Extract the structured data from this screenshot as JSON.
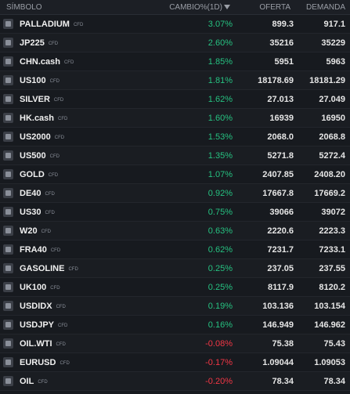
{
  "table": {
    "header": {
      "symbol": "SÍMBOLO",
      "change": "CAMBIO%(1D)",
      "bid": "OFERTA",
      "ask": "DEMANDA"
    },
    "positive_color": "#26c281",
    "negative_color": "#f23645",
    "rows": [
      {
        "symbol": "PALLADIUM",
        "tag": "CFD",
        "change": "3.07%",
        "bid": "899.3",
        "ask": "917.1"
      },
      {
        "symbol": "JP225",
        "tag": "CFD",
        "change": "2.60%",
        "bid": "35216",
        "ask": "35229"
      },
      {
        "symbol": "CHN.cash",
        "tag": "CFD",
        "change": "1.85%",
        "bid": "5951",
        "ask": "5963"
      },
      {
        "symbol": "US100",
        "tag": "CFD",
        "change": "1.81%",
        "bid": "18178.69",
        "ask": "18181.29"
      },
      {
        "symbol": "SILVER",
        "tag": "CFD",
        "change": "1.62%",
        "bid": "27.013",
        "ask": "27.049"
      },
      {
        "symbol": "HK.cash",
        "tag": "CFD",
        "change": "1.60%",
        "bid": "16939",
        "ask": "16950"
      },
      {
        "symbol": "US2000",
        "tag": "CFD",
        "change": "1.53%",
        "bid": "2068.0",
        "ask": "2068.8"
      },
      {
        "symbol": "US500",
        "tag": "CFD",
        "change": "1.35%",
        "bid": "5271.8",
        "ask": "5272.4"
      },
      {
        "symbol": "GOLD",
        "tag": "CFD",
        "change": "1.07%",
        "bid": "2407.85",
        "ask": "2408.20"
      },
      {
        "symbol": "DE40",
        "tag": "CFD",
        "change": "0.92%",
        "bid": "17667.8",
        "ask": "17669.2"
      },
      {
        "symbol": "US30",
        "tag": "CFD",
        "change": "0.75%",
        "bid": "39066",
        "ask": "39072"
      },
      {
        "symbol": "W20",
        "tag": "CFD",
        "change": "0.63%",
        "bid": "2220.6",
        "ask": "2223.3"
      },
      {
        "symbol": "FRA40",
        "tag": "CFD",
        "change": "0.62%",
        "bid": "7231.7",
        "ask": "7233.1"
      },
      {
        "symbol": "GASOLINE",
        "tag": "CFD",
        "change": "0.25%",
        "bid": "237.05",
        "ask": "237.55"
      },
      {
        "symbol": "UK100",
        "tag": "CFD",
        "change": "0.25%",
        "bid": "8117.9",
        "ask": "8120.2"
      },
      {
        "symbol": "USDIDX",
        "tag": "CFD",
        "change": "0.19%",
        "bid": "103.136",
        "ask": "103.154"
      },
      {
        "symbol": "USDJPY",
        "tag": "CFD",
        "change": "0.16%",
        "bid": "146.949",
        "ask": "146.962"
      },
      {
        "symbol": "OIL.WTI",
        "tag": "CFD",
        "change": "-0.08%",
        "bid": "75.38",
        "ask": "75.43"
      },
      {
        "symbol": "EURUSD",
        "tag": "CFD",
        "change": "-0.17%",
        "bid": "1.09044",
        "ask": "1.09053"
      },
      {
        "symbol": "OIL",
        "tag": "CFD",
        "change": "-0.20%",
        "bid": "78.34",
        "ask": "78.34"
      }
    ]
  }
}
